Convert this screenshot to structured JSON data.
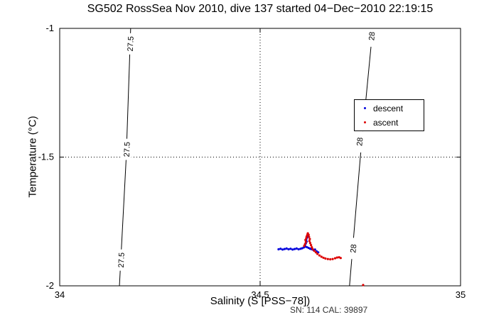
{
  "chart_data": {
    "type": "scatter",
    "title": "SG502 RossSea Nov 2010, dive 137 started 04−Dec−2010 22:19:15",
    "xlabel": "Salinity (S [PSS−78])",
    "ylabel": "Temperature (°C)",
    "xlim": [
      34,
      35
    ],
    "ylim": [
      -2,
      -1
    ],
    "xticks": [
      34,
      34.5,
      35
    ],
    "xtick_labels": [
      "34",
      "34.5",
      "35"
    ],
    "yticks": [
      -1,
      -1.5,
      -2
    ],
    "ytick_labels": [
      "-1",
      "-1.5",
      "-2"
    ],
    "grid": "dotted",
    "annotation": "SN: 114  CAL: 39897",
    "legend": {
      "position": "upper-right-inside",
      "entries": [
        {
          "label": "descent",
          "color": "#0000dd",
          "marker": "."
        },
        {
          "label": "ascent",
          "color": "#dd0000",
          "marker": "."
        }
      ]
    },
    "contours": [
      {
        "label": "27.5",
        "color": "#000000",
        "line": [
          [
            34.177,
            -1.0
          ],
          [
            34.166,
            -1.5
          ],
          [
            34.149,
            -2.0
          ]
        ],
        "labels_at": [
          [
            34.176,
            -1.06
          ],
          [
            34.167,
            -1.47
          ],
          [
            34.153,
            -1.9
          ]
        ]
      },
      {
        "label": "28",
        "color": "#000000",
        "line": [
          [
            34.781,
            -1.0
          ],
          [
            34.75,
            -1.5
          ],
          [
            34.723,
            -2.0
          ]
        ],
        "labels_at": [
          [
            34.778,
            -1.03
          ],
          [
            34.748,
            -1.44
          ],
          [
            34.732,
            -1.855
          ]
        ]
      }
    ],
    "series": [
      {
        "name": "descent",
        "color": "#0000dd",
        "points": [
          [
            34.546,
            -1.858
          ],
          [
            34.551,
            -1.856
          ],
          [
            34.556,
            -1.859
          ],
          [
            34.561,
            -1.857
          ],
          [
            34.566,
            -1.855
          ],
          [
            34.571,
            -1.858
          ],
          [
            34.576,
            -1.856
          ],
          [
            34.581,
            -1.859
          ],
          [
            34.586,
            -1.857
          ],
          [
            34.591,
            -1.855
          ],
          [
            34.596,
            -1.858
          ],
          [
            34.601,
            -1.856
          ],
          [
            34.605,
            -1.854
          ],
          [
            34.609,
            -1.851
          ],
          [
            34.613,
            -1.848
          ],
          [
            34.617,
            -1.85
          ],
          [
            34.621,
            -1.853
          ],
          [
            34.625,
            -1.856
          ],
          [
            34.629,
            -1.858
          ],
          [
            34.633,
            -1.861
          ],
          [
            34.637,
            -1.859
          ],
          [
            34.612,
            -1.842
          ],
          [
            34.614,
            -1.835
          ],
          [
            34.616,
            -1.828
          ],
          [
            34.615,
            -1.82
          ],
          [
            34.617,
            -1.813
          ],
          [
            34.618,
            -1.806
          ],
          [
            34.641,
            -1.866
          ],
          [
            34.645,
            -1.87
          ]
        ]
      },
      {
        "name": "ascent",
        "color": "#dd0000",
        "points": [
          [
            34.61,
            -1.845
          ],
          [
            34.612,
            -1.838
          ],
          [
            34.614,
            -1.83
          ],
          [
            34.613,
            -1.822
          ],
          [
            34.615,
            -1.815
          ],
          [
            34.616,
            -1.808
          ],
          [
            34.618,
            -1.801
          ],
          [
            34.619,
            -1.796
          ],
          [
            34.621,
            -1.802
          ],
          [
            34.622,
            -1.81
          ],
          [
            34.624,
            -1.818
          ],
          [
            34.623,
            -1.826
          ],
          [
            34.625,
            -1.834
          ],
          [
            34.627,
            -1.842
          ],
          [
            34.629,
            -1.85
          ],
          [
            34.631,
            -1.857
          ],
          [
            34.635,
            -1.864
          ],
          [
            34.639,
            -1.87
          ],
          [
            34.643,
            -1.876
          ],
          [
            34.648,
            -1.882
          ],
          [
            34.653,
            -1.887
          ],
          [
            34.658,
            -1.891
          ],
          [
            34.663,
            -1.894
          ],
          [
            34.669,
            -1.896
          ],
          [
            34.675,
            -1.897
          ],
          [
            34.681,
            -1.896
          ],
          [
            34.687,
            -1.893
          ],
          [
            34.692,
            -1.89
          ],
          [
            34.697,
            -1.889
          ],
          [
            34.701,
            -1.892
          ],
          [
            34.757,
            -1.997
          ]
        ]
      }
    ]
  }
}
